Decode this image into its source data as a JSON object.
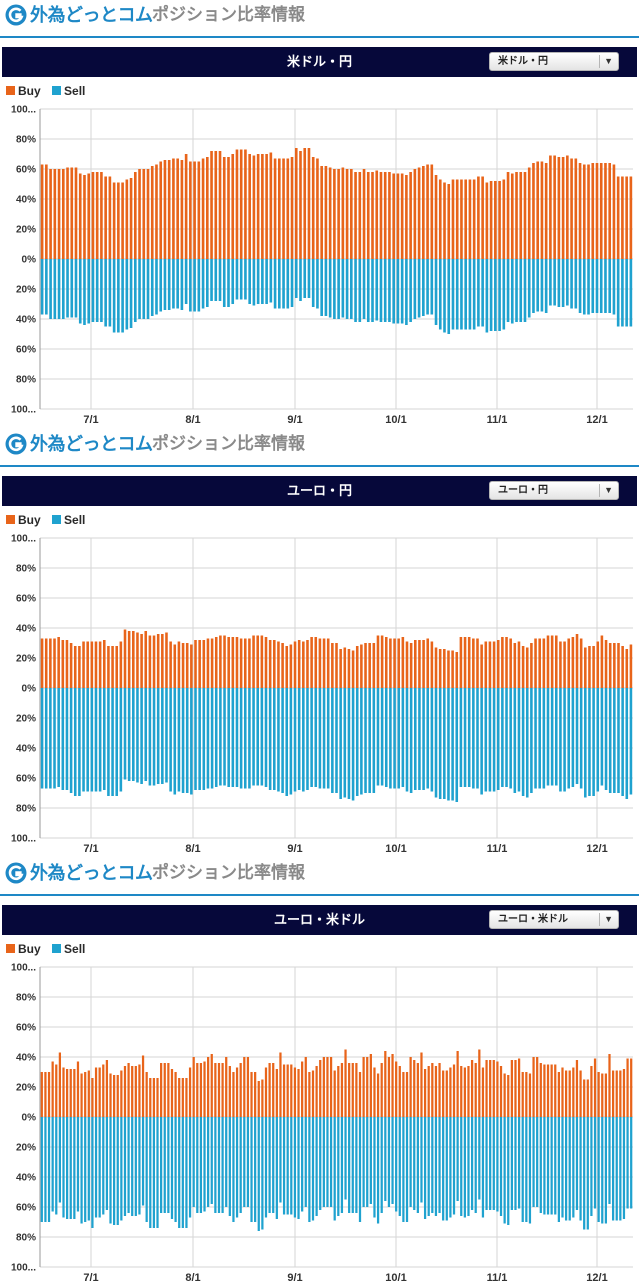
{
  "brand": {
    "name": "外為どっとコム",
    "subtitle": "ポジション比率情報"
  },
  "legend": {
    "buy": "Buy",
    "sell": "Sell"
  },
  "colors": {
    "buy": "#e8641a",
    "sell": "#1fa2cf",
    "brand": "#1e88c6",
    "title_bar": "#06083a"
  },
  "chart_data": [
    {
      "type": "bar",
      "title": "米ドル・円",
      "selector": "米ドル・円",
      "yticks": [
        "100...",
        "80%",
        "60%",
        "40%",
        "20%",
        "0%",
        "20%",
        "40%",
        "60%",
        "80%",
        "100..."
      ],
      "xticks": [
        "7/1",
        "8/1",
        "9/1",
        "10/1",
        "11/1",
        "12/1"
      ],
      "ylim": [
        -100,
        100
      ],
      "grid": true,
      "legend_position": "top-left",
      "buy_percent": [
        63,
        63,
        60,
        60,
        60,
        60,
        61,
        61,
        61,
        57,
        56,
        57,
        58,
        58,
        58,
        55,
        55,
        51,
        51,
        51,
        53,
        54,
        58,
        60,
        60,
        60,
        62,
        63,
        65,
        66,
        66,
        67,
        67,
        66,
        70,
        65,
        65,
        65,
        67,
        68,
        72,
        72,
        72,
        68,
        68,
        70,
        73,
        73,
        73,
        70,
        69,
        70,
        70,
        70,
        71,
        67,
        67,
        67,
        67,
        68,
        74,
        72,
        74,
        74,
        68,
        67,
        62,
        62,
        61,
        60,
        60,
        61,
        60,
        60,
        58,
        58,
        60,
        58,
        58,
        59,
        58,
        58,
        58,
        57,
        57,
        57,
        56,
        58,
        60,
        61,
        62,
        63,
        63,
        56,
        53,
        51,
        50,
        53,
        53,
        53,
        53,
        53,
        53,
        55,
        55,
        51,
        52,
        52,
        52,
        53,
        58,
        57,
        58,
        58,
        58,
        61,
        64,
        65,
        65,
        64,
        69,
        69,
        68,
        68,
        69,
        67,
        67,
        64,
        63,
        63,
        64,
        64,
        64,
        64,
        64,
        63,
        55,
        55,
        55,
        55
      ],
      "sell_percent": [
        37,
        37,
        40,
        40,
        40,
        40,
        39,
        39,
        39,
        43,
        44,
        43,
        42,
        42,
        42,
        45,
        45,
        49,
        49,
        49,
        47,
        46,
        42,
        40,
        40,
        40,
        38,
        37,
        35,
        34,
        34,
        33,
        33,
        34,
        30,
        35,
        35,
        35,
        33,
        32,
        28,
        28,
        28,
        32,
        32,
        30,
        27,
        27,
        27,
        30,
        31,
        30,
        30,
        30,
        29,
        33,
        33,
        33,
        33,
        32,
        26,
        28,
        26,
        26,
        32,
        33,
        38,
        38,
        39,
        40,
        40,
        39,
        40,
        40,
        42,
        42,
        40,
        42,
        42,
        41,
        42,
        42,
        42,
        43,
        43,
        43,
        44,
        42,
        40,
        39,
        38,
        37,
        37,
        44,
        47,
        49,
        50,
        47,
        47,
        47,
        47,
        47,
        47,
        45,
        45,
        49,
        48,
        48,
        48,
        47,
        42,
        43,
        42,
        42,
        42,
        39,
        36,
        35,
        35,
        36,
        31,
        31,
        32,
        32,
        31,
        33,
        33,
        36,
        37,
        37,
        36,
        36,
        36,
        36,
        36,
        37,
        45,
        45,
        45,
        45
      ]
    },
    {
      "type": "bar",
      "title": "ユーロ・円",
      "selector": "ユーロ・円",
      "yticks": [
        "100...",
        "80%",
        "60%",
        "40%",
        "20%",
        "0%",
        "20%",
        "40%",
        "60%",
        "80%",
        "100..."
      ],
      "xticks": [
        "7/1",
        "8/1",
        "9/1",
        "10/1",
        "11/1",
        "12/1"
      ],
      "ylim": [
        -100,
        100
      ],
      "grid": true,
      "legend_position": "top-left",
      "buy_percent": [
        33,
        33,
        33,
        33,
        34,
        32,
        32,
        30,
        28,
        28,
        31,
        31,
        31,
        31,
        31,
        32,
        28,
        28,
        28,
        31,
        39,
        38,
        38,
        37,
        36,
        38,
        35,
        35,
        36,
        36,
        37,
        31,
        29,
        31,
        30,
        30,
        29,
        32,
        32,
        32,
        33,
        33,
        34,
        35,
        35,
        34,
        34,
        34,
        33,
        33,
        33,
        35,
        35,
        35,
        34,
        32,
        32,
        31,
        30,
        28,
        29,
        31,
        32,
        31,
        32,
        34,
        34,
        33,
        33,
        33,
        30,
        30,
        26,
        27,
        26,
        25,
        28,
        29,
        30,
        30,
        30,
        35,
        35,
        34,
        33,
        33,
        33,
        34,
        31,
        30,
        32,
        32,
        32,
        33,
        31,
        27,
        26,
        26,
        25,
        25,
        24,
        34,
        34,
        34,
        33,
        33,
        29,
        31,
        31,
        31,
        32,
        34,
        34,
        33,
        30,
        31,
        28,
        27,
        30,
        33,
        33,
        33,
        35,
        35,
        35,
        31,
        31,
        33,
        34,
        36,
        33,
        27,
        28,
        28,
        31,
        35,
        32,
        30,
        30,
        30,
        28,
        26,
        29
      ],
      "sell_percent": [
        67,
        67,
        67,
        67,
        66,
        68,
        68,
        70,
        72,
        72,
        69,
        69,
        69,
        69,
        69,
        68,
        72,
        72,
        72,
        69,
        61,
        62,
        62,
        63,
        64,
        62,
        65,
        65,
        64,
        64,
        63,
        69,
        71,
        69,
        70,
        70,
        71,
        68,
        68,
        68,
        67,
        67,
        66,
        65,
        65,
        66,
        66,
        66,
        67,
        67,
        67,
        65,
        65,
        65,
        66,
        68,
        68,
        69,
        70,
        72,
        71,
        69,
        68,
        69,
        68,
        66,
        66,
        67,
        67,
        67,
        70,
        70,
        74,
        73,
        74,
        75,
        72,
        71,
        70,
        70,
        70,
        65,
        65,
        66,
        67,
        67,
        67,
        66,
        69,
        70,
        68,
        68,
        68,
        67,
        69,
        73,
        74,
        74,
        75,
        75,
        76,
        66,
        66,
        66,
        67,
        67,
        71,
        69,
        69,
        69,
        68,
        66,
        66,
        67,
        70,
        69,
        72,
        73,
        70,
        67,
        67,
        67,
        65,
        65,
        65,
        69,
        69,
        67,
        66,
        64,
        67,
        73,
        72,
        72,
        69,
        65,
        68,
        70,
        70,
        70,
        72,
        74,
        71
      ]
    },
    {
      "type": "bar",
      "title": "ユーロ・米ドル",
      "selector": "ユーロ・米ドル",
      "yticks": [
        "100...",
        "80%",
        "60%",
        "40%",
        "20%",
        "0%",
        "20%",
        "40%",
        "60%",
        "80%",
        "100..."
      ],
      "xticks": [
        "7/1",
        "8/1",
        "9/1",
        "10/1",
        "11/1",
        "12/1"
      ],
      "ylim": [
        -100,
        100
      ],
      "grid": true,
      "legend_position": "top-left",
      "buy_percent": [
        30,
        30,
        30,
        37,
        35,
        43,
        33,
        32,
        32,
        32,
        37,
        29,
        30,
        31,
        26,
        33,
        33,
        35,
        38,
        29,
        28,
        28,
        31,
        34,
        36,
        34,
        34,
        35,
        41,
        30,
        26,
        26,
        26,
        36,
        36,
        36,
        32,
        30,
        26,
        26,
        26,
        33,
        40,
        36,
        36,
        37,
        40,
        42,
        36,
        36,
        36,
        40,
        34,
        30,
        33,
        36,
        40,
        40,
        30,
        30,
        24,
        25,
        33,
        36,
        36,
        32,
        43,
        35,
        35,
        35,
        33,
        32,
        37,
        40,
        30,
        31,
        34,
        38,
        40,
        40,
        40,
        31,
        34,
        36,
        45,
        36,
        36,
        36,
        30,
        40,
        40,
        42,
        33,
        29,
        36,
        44,
        40,
        42,
        37,
        34,
        30,
        30,
        40,
        38,
        36,
        43,
        32,
        34,
        36,
        34,
        36,
        31,
        31,
        33,
        35,
        44,
        34,
        33,
        34,
        38,
        36,
        45,
        33,
        38,
        38,
        38,
        37,
        34,
        29,
        28,
        38,
        38,
        39,
        30,
        30,
        29,
        40,
        40,
        36,
        35,
        35,
        35,
        35,
        30,
        33,
        31,
        31,
        33,
        38,
        31,
        25,
        25,
        34,
        39,
        30,
        29,
        29,
        42,
        31,
        31,
        31,
        32,
        39,
        39
      ],
      "sell_percent": [
        70,
        70,
        70,
        63,
        65,
        57,
        67,
        68,
        68,
        68,
        63,
        71,
        70,
        69,
        74,
        67,
        67,
        65,
        62,
        71,
        72,
        72,
        69,
        66,
        64,
        66,
        66,
        65,
        59,
        70,
        74,
        74,
        74,
        64,
        64,
        64,
        68,
        70,
        74,
        74,
        74,
        67,
        60,
        64,
        64,
        63,
        60,
        58,
        64,
        64,
        64,
        60,
        66,
        70,
        67,
        64,
        60,
        60,
        70,
        70,
        76,
        75,
        67,
        64,
        64,
        68,
        57,
        65,
        65,
        65,
        67,
        68,
        63,
        60,
        70,
        69,
        66,
        62,
        60,
        60,
        60,
        69,
        66,
        64,
        55,
        64,
        64,
        64,
        70,
        60,
        60,
        58,
        67,
        71,
        64,
        56,
        60,
        58,
        63,
        66,
        70,
        70,
        60,
        62,
        64,
        57,
        68,
        66,
        64,
        66,
        64,
        69,
        69,
        67,
        65,
        56,
        66,
        67,
        66,
        62,
        64,
        55,
        67,
        62,
        62,
        62,
        63,
        66,
        71,
        72,
        62,
        62,
        61,
        70,
        70,
        71,
        60,
        60,
        64,
        65,
        65,
        65,
        65,
        70,
        67,
        69,
        69,
        67,
        62,
        69,
        75,
        75,
        66,
        61,
        70,
        71,
        71,
        58,
        69,
        69,
        69,
        68,
        61,
        61
      ]
    }
  ]
}
